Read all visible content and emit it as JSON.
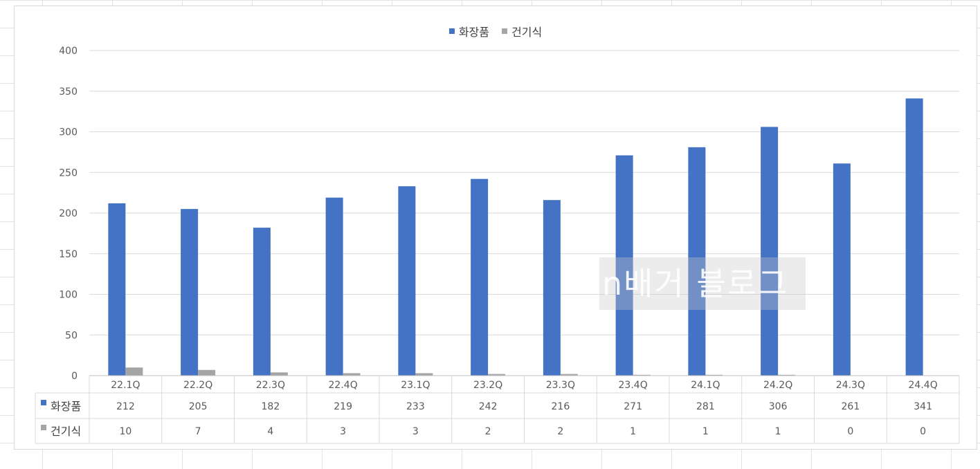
{
  "chart_data": {
    "type": "bar",
    "categories": [
      "22.1Q",
      "22.2Q",
      "22.3Q",
      "22.4Q",
      "23.1Q",
      "23.2Q",
      "23.3Q",
      "23.4Q",
      "24.1Q",
      "24.2Q",
      "24.3Q",
      "24.4Q"
    ],
    "series": [
      {
        "name": "화장품",
        "color": "#4472c4",
        "values": [
          212,
          205,
          182,
          219,
          233,
          242,
          216,
          271,
          281,
          306,
          261,
          341
        ]
      },
      {
        "name": "건기식",
        "color": "#a5a5a5",
        "values": [
          10,
          7,
          4,
          3,
          3,
          2,
          2,
          1,
          1,
          1,
          0,
          0
        ]
      }
    ],
    "yticks": [
      0,
      50,
      100,
      150,
      200,
      250,
      300,
      350,
      400
    ],
    "ylim": [
      0,
      400
    ],
    "grid": true,
    "legend": "top-center",
    "data_table": true
  },
  "watermark": "n배거 블로그"
}
